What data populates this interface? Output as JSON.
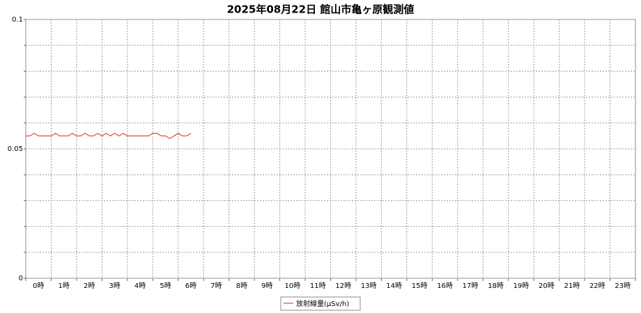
{
  "chart_data": {
    "type": "line",
    "title": "2025年08月22日 館山市亀ヶ原観測値",
    "categories": [
      "0時",
      "1時",
      "2時",
      "3時",
      "4時",
      "5時",
      "6時",
      "7時",
      "8時",
      "9時",
      "10時",
      "11時",
      "12時",
      "13時",
      "14時",
      "15時",
      "16時",
      "17時",
      "18時",
      "19時",
      "20時",
      "21時",
      "22時",
      "23時"
    ],
    "x": [
      0,
      10,
      20,
      30,
      40,
      50,
      60,
      70,
      80,
      90,
      100,
      110,
      120,
      130,
      140,
      150,
      160,
      170,
      180,
      190,
      200,
      210,
      220,
      230,
      240,
      250,
      260,
      270,
      280,
      290,
      300,
      310,
      320,
      330,
      340,
      350,
      360,
      370,
      380,
      390
    ],
    "xlim": [
      0,
      1440
    ],
    "series": [
      {
        "name": "放射線量(μSv/h)",
        "color": "#e02020",
        "values": [
          0.055,
          0.055,
          0.056,
          0.055,
          0.055,
          0.055,
          0.055,
          0.056,
          0.055,
          0.055,
          0.055,
          0.056,
          0.055,
          0.055,
          0.056,
          0.055,
          0.055,
          0.056,
          0.055,
          0.056,
          0.055,
          0.056,
          0.055,
          0.056,
          0.055,
          0.055,
          0.055,
          0.055,
          0.055,
          0.055,
          0.056,
          0.056,
          0.055,
          0.055,
          0.054,
          0.055,
          0.056,
          0.055,
          0.055,
          0.056
        ]
      }
    ],
    "ylim": [
      0,
      0.1
    ],
    "yticks": [
      0,
      0.05,
      0.1
    ],
    "ygrid": [
      0,
      0.01,
      0.02,
      0.03,
      0.04,
      0.05,
      0.06,
      0.07,
      0.08,
      0.09,
      0.1
    ],
    "grid": true,
    "legend": "bottom"
  }
}
